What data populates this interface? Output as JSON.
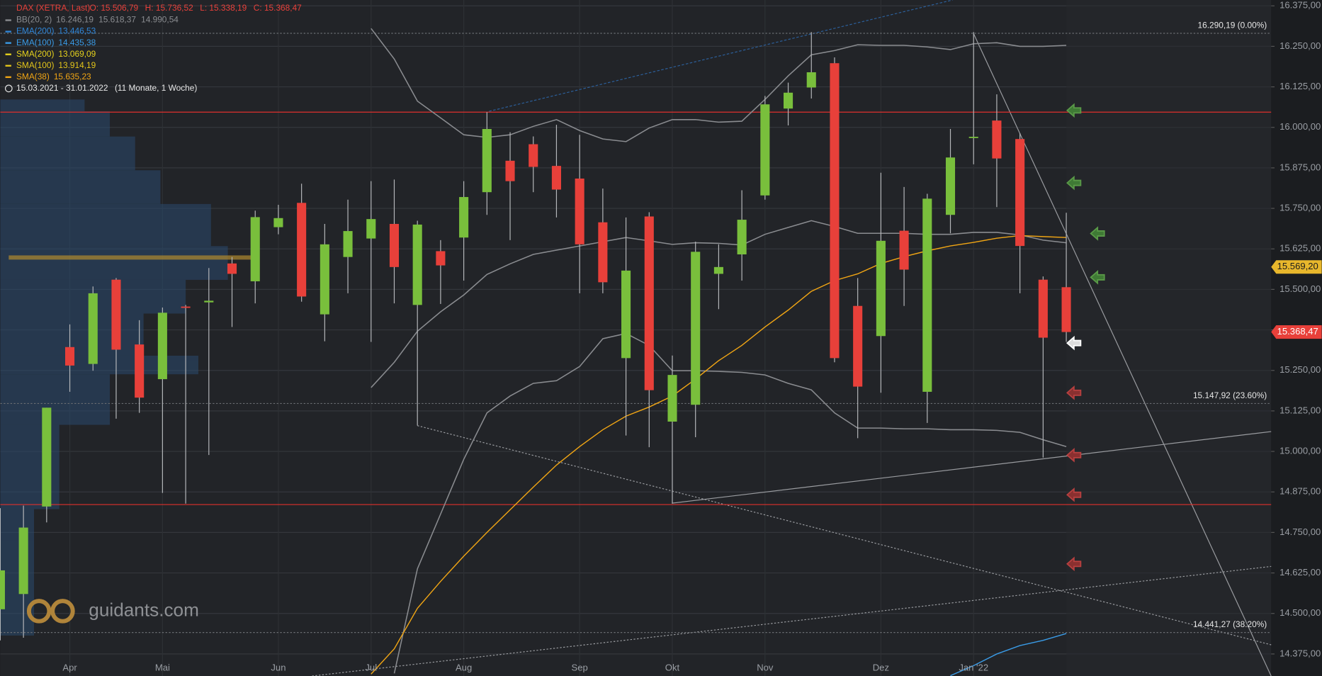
{
  "chart_data": {
    "type": "candlestick",
    "header": {
      "title": "DAX (XETRA, Last)",
      "ohlc": [
        "O: 15.506,79",
        "H: 15.736,52",
        "L: 15.338,19",
        "C: 15.368,47"
      ],
      "period": "15.03.2021 - 31.01.2022",
      "duration": "(11 Monate, 1 Woche)"
    },
    "watermark": "guidants.com",
    "xlim": [
      0,
      54.84
    ],
    "ylim": [
      14307,
      16393
    ],
    "xticks": [
      {
        "value": 3,
        "label": "Apr"
      },
      {
        "value": 7,
        "label": "Mai"
      },
      {
        "value": 12,
        "label": "Jun"
      },
      {
        "value": 16,
        "label": "Jul"
      },
      {
        "value": 20,
        "label": "Aug"
      },
      {
        "value": 25,
        "label": "Sep"
      },
      {
        "value": 29,
        "label": "Okt"
      },
      {
        "value": 33,
        "label": "Nov"
      },
      {
        "value": 38,
        "label": "Dez"
      },
      {
        "value": 42,
        "label": "Jan '22"
      }
    ],
    "yticks": [
      {
        "value": 16375,
        "label": "16.375,00"
      },
      {
        "value": 16250,
        "label": "16.250,00"
      },
      {
        "value": 16125,
        "label": "16.125,00"
      },
      {
        "value": 16000,
        "label": "16.000,00"
      },
      {
        "value": 15875,
        "label": "15.875,00"
      },
      {
        "value": 15750,
        "label": "15.750,00"
      },
      {
        "value": 15625,
        "label": "15.625,00"
      },
      {
        "value": 15500,
        "label": "15.500,00"
      },
      {
        "value": 15375,
        "label": "15.375,00"
      },
      {
        "value": 15250,
        "label": "15.250,00"
      },
      {
        "value": 15125,
        "label": "15.125,00"
      },
      {
        "value": 15000,
        "label": "15.000,00"
      },
      {
        "value": 14875,
        "label": "14.875,00"
      },
      {
        "value": 14750,
        "label": "14.750,00"
      },
      {
        "value": 14625,
        "label": "14.625,00"
      },
      {
        "value": 14500,
        "label": "14.500,00"
      },
      {
        "value": 14375,
        "label": "14.375,00"
      }
    ],
    "grid": true,
    "up_color": "#79bf3c",
    "down_color": "#e8403a",
    "opens": [
      14513,
      14560,
      14830,
      15322,
      15270,
      15530,
      15330,
      15223,
      15447,
      15460,
      15580,
      15525,
      15692,
      15767,
      15423,
      15600,
      15657,
      15702,
      15452,
      15618,
      15660,
      15800,
      15897,
      15948,
      15881,
      15842,
      15707,
      15288,
      15725,
      15092,
      15144,
      15548,
      15608,
      15790,
      16058,
      16123,
      16198,
      15449,
      15356,
      15681,
      15184,
      15730,
      15969,
      16021,
      15964,
      15530,
      15506.79
    ],
    "highs": [
      14825,
      14833,
      15135,
      15392,
      15509,
      15535,
      15405,
      15444,
      15452,
      15566,
      15600,
      15743,
      15761,
      15826,
      15702,
      15777,
      15834,
      15839,
      15712,
      15652,
      15834,
      16047,
      15985,
      15972,
      16008,
      15977,
      15811,
      15722,
      15738,
      15296,
      15647,
      15639,
      15806,
      16097,
      16138,
      16294,
      16216,
      15535,
      15860,
      15816,
      15795,
      15995,
      16294,
      16102,
      15982,
      15540,
      15736.52
    ],
    "lows": [
      14417,
      14425,
      14781,
      15184,
      15249,
      15101,
      15119,
      14872,
      14839,
      14989,
      15384,
      15457,
      15670,
      15462,
      15340,
      15488,
      15338,
      15457,
      15080,
      15455,
      15527,
      15730,
      15652,
      15800,
      15722,
      15488,
      15488,
      15049,
      15013,
      14839,
      15044,
      15439,
      15527,
      15777,
      16006,
      16089,
      15275,
      15041,
      15181,
      15449,
      15088,
      15673,
      15886,
      15754,
      15488,
      14981,
      15338.19
    ],
    "closes": [
      14633,
      14765,
      15135,
      15265,
      15488,
      15314,
      15166,
      15428,
      15443,
      15465,
      15548,
      15723,
      15720,
      15478,
      15639,
      15680,
      15717,
      15569,
      15700,
      15574,
      15785,
      15995,
      15834,
      15878,
      15808,
      15639,
      15522,
      15558,
      15189,
      15236,
      15616,
      15569,
      15715,
      16071,
      16107,
      16170,
      15288,
      15200,
      15650,
      15561,
      15780,
      15907,
      15971,
      15904,
      15634,
      15351,
      15368.47
    ],
    "indicators": [
      {
        "name": "BB(20, 2)",
        "color": "#8a8c90",
        "legend_values": [
          "16.246,19",
          "15.618,37",
          "14.990,54"
        ],
        "upper": [
          null,
          null,
          null,
          null,
          null,
          null,
          null,
          null,
          null,
          null,
          null,
          null,
          null,
          null,
          null,
          null,
          16305,
          16211,
          16081,
          16029,
          15977,
          15969,
          15977,
          16003,
          16024,
          15990,
          15964,
          15956,
          15998,
          16024,
          16024,
          16016,
          16019,
          16086,
          16159,
          16224,
          16237,
          16255,
          16253,
          16253,
          16248,
          16240,
          16258,
          16261,
          16250,
          16250,
          16253
        ],
        "middle": [
          null,
          null,
          null,
          null,
          null,
          null,
          null,
          null,
          null,
          null,
          null,
          null,
          null,
          null,
          null,
          null,
          15197,
          15275,
          15371,
          15431,
          15483,
          15546,
          15579,
          15608,
          15621,
          15634,
          15647,
          15660,
          15650,
          15639,
          15644,
          15642,
          15637,
          15670,
          15691,
          15712,
          15694,
          15673,
          15673,
          15673,
          15670,
          15670,
          15676,
          15676,
          15668,
          15652,
          15644
        ],
        "lower": [
          null,
          null,
          null,
          null,
          null,
          null,
          null,
          null,
          null,
          null,
          null,
          null,
          null,
          null,
          null,
          null,
          null,
          14315,
          14638,
          14807,
          14976,
          15119,
          15171,
          15210,
          15218,
          15262,
          15348,
          15364,
          15327,
          15249,
          15249,
          15247,
          15244,
          15236,
          15210,
          15190,
          15119,
          15072,
          15072,
          15070,
          15070,
          15067,
          15067,
          15065,
          15059,
          15036,
          15015
        ]
      },
      {
        "name": "EMA(200)",
        "color": "#2f86d8",
        "legend_values": [
          "13.446,53"
        ]
      },
      {
        "name": "EMA(100)",
        "color": "#3a9be6",
        "legend_values": [
          "14.435,38"
        ],
        "values": [
          null,
          null,
          null,
          null,
          null,
          null,
          null,
          null,
          null,
          null,
          null,
          null,
          null,
          null,
          null,
          null,
          null,
          null,
          null,
          null,
          null,
          null,
          null,
          null,
          null,
          null,
          null,
          null,
          null,
          null,
          null,
          null,
          null,
          null,
          null,
          null,
          null,
          null,
          null,
          null,
          null,
          14308,
          14339,
          14375,
          14401,
          14417,
          14438
        ]
      },
      {
        "name": "SMA(200)",
        "color": "#e6d21c",
        "legend_values": [
          "13.069,09"
        ]
      },
      {
        "name": "SMA(100)",
        "color": "#e3c51a",
        "legend_values": [
          "13.914,19"
        ]
      },
      {
        "name": "SMA(38)",
        "color": "#f0a514",
        "legend_values": [
          "15.635,23"
        ],
        "values": [
          null,
          null,
          null,
          null,
          null,
          null,
          null,
          null,
          null,
          null,
          null,
          null,
          null,
          null,
          null,
          null,
          14313,
          14391,
          14516,
          14599,
          14677,
          14750,
          14820,
          14890,
          14958,
          15015,
          15067,
          15109,
          15137,
          15171,
          15223,
          15280,
          15327,
          15384,
          15436,
          15494,
          15527,
          15548,
          15580,
          15601,
          15619,
          15634,
          15645,
          15658,
          15666,
          15663,
          15660
        ]
      }
    ],
    "fib_levels": [
      {
        "value": 16290.19,
        "label": "16.290,19 (0.00%)"
      },
      {
        "value": 15147.92,
        "label": "15.147,92 (23.60%)"
      },
      {
        "value": 14441.27,
        "label": "14.441,27 (38.20%)"
      }
    ],
    "horizontal_lines": [
      16047,
      14836
    ],
    "price_tags": [
      {
        "value": 15569.2,
        "label": "15.569,20",
        "color": "#e8b72c"
      },
      {
        "value": 15368.47,
        "label": "15.368,47",
        "color": "#e8403a"
      }
    ]
  }
}
